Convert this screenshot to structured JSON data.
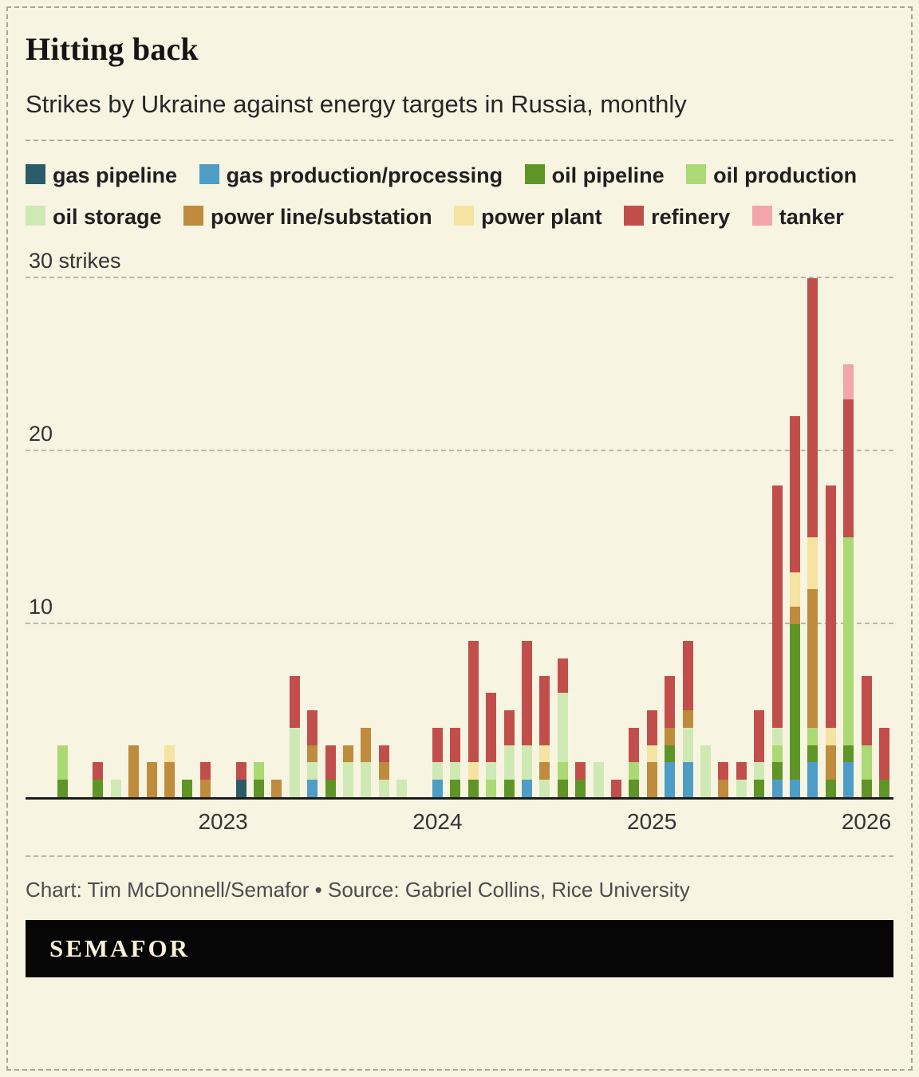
{
  "header": {
    "title": "Hitting back",
    "subtitle": "Strikes by Ukraine against energy targets in Russia, monthly"
  },
  "legend": [
    {
      "key": "gas_pipeline",
      "label": "gas pipeline",
      "color": "#2b5b68"
    },
    {
      "key": "gas_production",
      "label": "gas production/processing",
      "color": "#4d9dc7"
    },
    {
      "key": "oil_pipeline",
      "label": "oil pipeline",
      "color": "#5e9526"
    },
    {
      "key": "oil_production",
      "label": "oil production",
      "color": "#abd973"
    },
    {
      "key": "oil_storage",
      "label": "oil storage",
      "color": "#cfe9b4"
    },
    {
      "key": "power_line",
      "label": "power line/substation",
      "color": "#bf8b3d"
    },
    {
      "key": "power_plant",
      "label": "power plant",
      "color": "#f4e3a1"
    },
    {
      "key": "refinery",
      "label": "refinery",
      "color": "#c24e4b"
    },
    {
      "key": "tanker",
      "label": "tanker",
      "color": "#f2a6ab"
    }
  ],
  "chart_data": {
    "type": "bar",
    "stacked": true,
    "title": "Hitting back",
    "subtitle": "Strikes by Ukraine against energy targets in Russia, monthly",
    "ylabel": "strikes",
    "ylim": [
      0,
      30
    ],
    "grid": true,
    "legend_position": "top",
    "yticks": [
      {
        "value": 10,
        "label": "10"
      },
      {
        "value": 20,
        "label": "20"
      },
      {
        "value": 30,
        "label": "30 strikes"
      }
    ],
    "x_year_labels": [
      {
        "label": "2023",
        "index": 9
      },
      {
        "label": "2024",
        "index": 21
      },
      {
        "label": "2025",
        "index": 33
      },
      {
        "label": "2026",
        "index": 45
      }
    ],
    "series_keys": [
      "gas_pipeline",
      "gas_production",
      "oil_pipeline",
      "oil_production",
      "oil_storage",
      "power_line",
      "power_plant",
      "refinery",
      "tanker"
    ],
    "months": [
      {
        "month": "2022-04",
        "segments": {
          "oil_pipeline": 1,
          "oil_production": 2
        }
      },
      {
        "month": "2022-05",
        "segments": {}
      },
      {
        "month": "2022-06",
        "segments": {
          "oil_pipeline": 1,
          "refinery": 1
        }
      },
      {
        "month": "2022-07",
        "segments": {
          "oil_storage": 1
        }
      },
      {
        "month": "2022-08",
        "segments": {
          "power_line": 3
        }
      },
      {
        "month": "2022-09",
        "segments": {
          "power_line": 2
        }
      },
      {
        "month": "2022-10",
        "segments": {
          "power_line": 2,
          "power_plant": 1
        }
      },
      {
        "month": "2022-11",
        "segments": {
          "oil_pipeline": 1
        }
      },
      {
        "month": "2022-12",
        "segments": {
          "power_line": 1,
          "refinery": 1
        }
      },
      {
        "month": "2023-01",
        "segments": {}
      },
      {
        "month": "2023-02",
        "segments": {
          "gas_pipeline": 1,
          "refinery": 1
        }
      },
      {
        "month": "2023-03",
        "segments": {
          "oil_pipeline": 1,
          "oil_production": 1
        }
      },
      {
        "month": "2023-04",
        "segments": {
          "power_line": 1
        }
      },
      {
        "month": "2023-05",
        "segments": {
          "oil_storage": 4,
          "refinery": 3
        }
      },
      {
        "month": "2023-06",
        "segments": {
          "gas_production": 1,
          "oil_storage": 1,
          "power_line": 1,
          "refinery": 2
        }
      },
      {
        "month": "2023-07",
        "segments": {
          "oil_pipeline": 1,
          "refinery": 2
        }
      },
      {
        "month": "2023-08",
        "segments": {
          "oil_storage": 2,
          "power_line": 1
        }
      },
      {
        "month": "2023-09",
        "segments": {
          "oil_storage": 2,
          "power_line": 2
        }
      },
      {
        "month": "2023-10",
        "segments": {
          "oil_storage": 1,
          "power_line": 1,
          "refinery": 1
        }
      },
      {
        "month": "2023-11",
        "segments": {
          "oil_storage": 1
        }
      },
      {
        "month": "2023-12",
        "segments": {}
      },
      {
        "month": "2024-01",
        "segments": {
          "gas_production": 1,
          "oil_storage": 1,
          "refinery": 2
        }
      },
      {
        "month": "2024-02",
        "segments": {
          "oil_pipeline": 1,
          "oil_storage": 1,
          "refinery": 2
        }
      },
      {
        "month": "2024-03",
        "segments": {
          "oil_pipeline": 1,
          "power_plant": 1,
          "refinery": 7
        }
      },
      {
        "month": "2024-04",
        "segments": {
          "oil_production": 1,
          "oil_storage": 1,
          "refinery": 4
        }
      },
      {
        "month": "2024-05",
        "segments": {
          "oil_pipeline": 1,
          "oil_storage": 2,
          "refinery": 2
        }
      },
      {
        "month": "2024-06",
        "segments": {
          "gas_production": 1,
          "oil_storage": 2,
          "refinery": 6
        }
      },
      {
        "month": "2024-07",
        "segments": {
          "oil_storage": 1,
          "power_line": 1,
          "power_plant": 1,
          "refinery": 4
        }
      },
      {
        "month": "2024-08",
        "segments": {
          "oil_pipeline": 1,
          "oil_production": 1,
          "oil_storage": 4,
          "refinery": 2
        }
      },
      {
        "month": "2024-09",
        "segments": {
          "oil_pipeline": 1,
          "refinery": 1
        }
      },
      {
        "month": "2024-10",
        "segments": {
          "oil_storage": 2
        }
      },
      {
        "month": "2024-11",
        "segments": {
          "refinery": 1
        }
      },
      {
        "month": "2024-12",
        "segments": {
          "oil_pipeline": 1,
          "oil_production": 1,
          "refinery": 2
        }
      },
      {
        "month": "2025-01",
        "segments": {
          "power_line": 2,
          "power_plant": 1,
          "refinery": 2
        }
      },
      {
        "month": "2025-02",
        "segments": {
          "gas_production": 2,
          "oil_pipeline": 1,
          "power_line": 1,
          "refinery": 3
        }
      },
      {
        "month": "2025-03",
        "segments": {
          "gas_production": 2,
          "oil_storage": 2,
          "power_line": 1,
          "refinery": 4
        }
      },
      {
        "month": "2025-04",
        "segments": {
          "oil_storage": 3
        }
      },
      {
        "month": "2025-05",
        "segments": {
          "power_line": 1,
          "refinery": 1
        }
      },
      {
        "month": "2025-06",
        "segments": {
          "oil_storage": 1,
          "refinery": 1
        }
      },
      {
        "month": "2025-07",
        "segments": {
          "oil_pipeline": 1,
          "oil_storage": 1,
          "refinery": 3
        }
      },
      {
        "month": "2025-08",
        "segments": {
          "gas_production": 1,
          "oil_pipeline": 1,
          "oil_production": 1,
          "oil_storage": 1,
          "refinery": 14
        }
      },
      {
        "month": "2025-09",
        "segments": {
          "gas_production": 1,
          "oil_pipeline": 9,
          "power_line": 1,
          "power_plant": 2,
          "refinery": 9
        }
      },
      {
        "month": "2025-10",
        "segments": {
          "gas_production": 2,
          "oil_pipeline": 1,
          "oil_production": 1,
          "power_line": 8,
          "power_plant": 3,
          "refinery": 15
        }
      },
      {
        "month": "2025-11",
        "segments": {
          "oil_pipeline": 1,
          "power_line": 2,
          "power_plant": 1,
          "refinery": 14
        }
      },
      {
        "month": "2025-12",
        "segments": {
          "gas_production": 2,
          "oil_pipeline": 1,
          "oil_production": 12,
          "refinery": 8,
          "tanker": 2
        }
      },
      {
        "month": "2026-01",
        "segments": {
          "oil_pipeline": 1,
          "oil_production": 2,
          "refinery": 4
        }
      },
      {
        "month": "2026-02",
        "segments": {
          "oil_pipeline": 1,
          "refinery": 3
        }
      }
    ]
  },
  "footer": {
    "credit": "Chart: Tim McDonnell/Semafor • Source: Gabriel Collins, Rice University",
    "logo": "SEMAFOR"
  }
}
